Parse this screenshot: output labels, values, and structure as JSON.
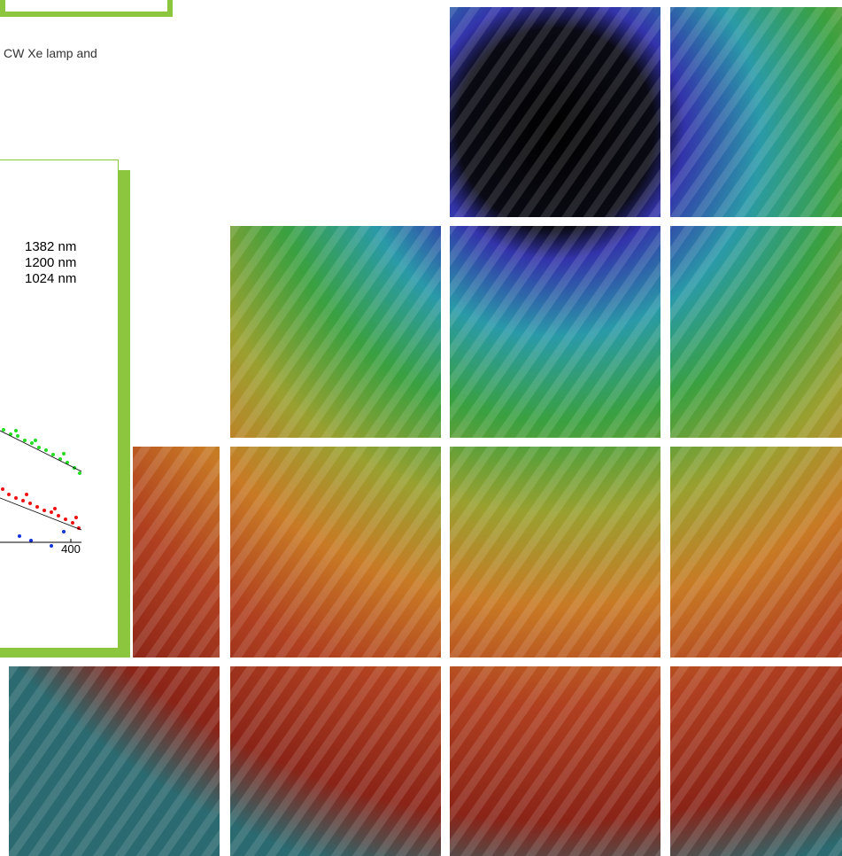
{
  "intro_text": "CW Xe lamp and",
  "figure": {
    "legend": [
      "1382 nm",
      "1200 nm",
      "1024 nm"
    ],
    "x_tick_label": "400"
  }
}
